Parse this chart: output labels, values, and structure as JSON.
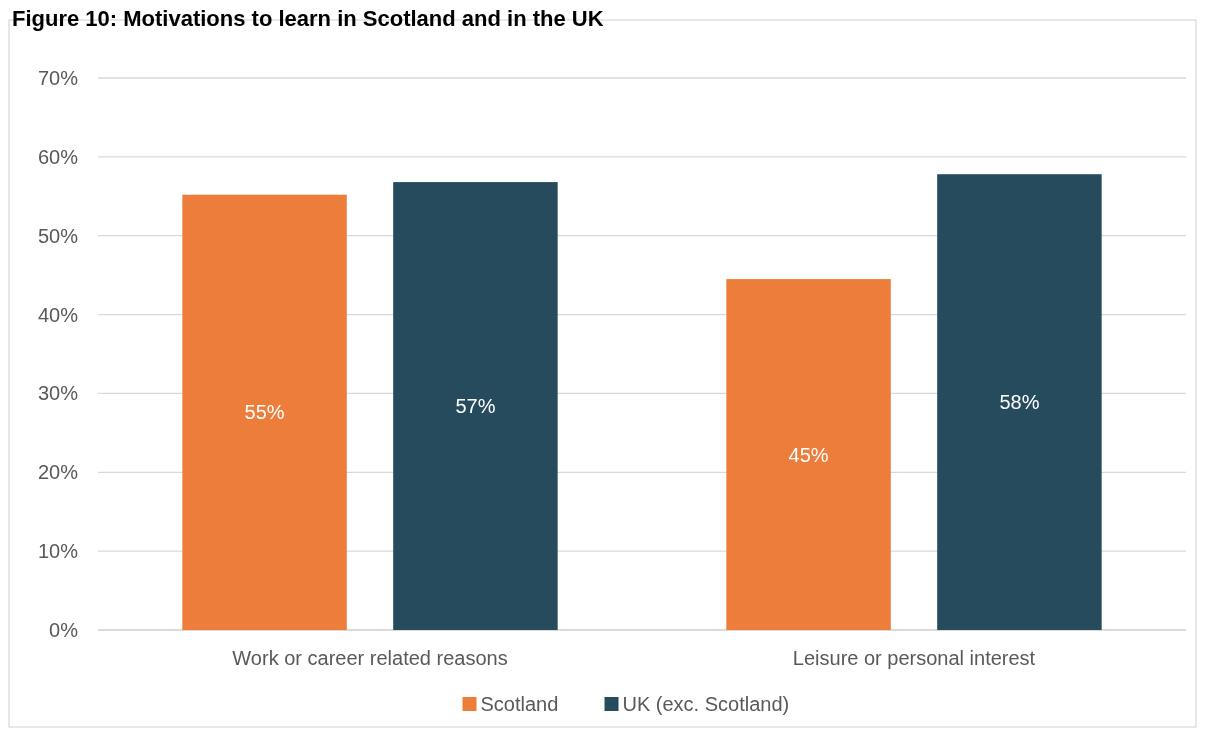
{
  "chart_data": {
    "type": "bar",
    "title": "Figure 10: Motivations to learn in Scotland and in the UK",
    "categories": [
      "Work or career related reasons",
      "Leisure or personal interest"
    ],
    "series": [
      {
        "name": "Scotland",
        "color": "#ed7d3b",
        "values": [
          55.2,
          44.5
        ],
        "value_labels": [
          "55%",
          "45%"
        ]
      },
      {
        "name": "UK (exc. Scotland)",
        "color": "#264b5c",
        "values": [
          56.8,
          57.8
        ],
        "value_labels": [
          "57%",
          "58%"
        ]
      }
    ],
    "ylim": [
      0,
      70
    ],
    "yticks": [
      {
        "value": 0,
        "label": "0%"
      },
      {
        "value": 10,
        "label": "10%"
      },
      {
        "value": 20,
        "label": "20%"
      },
      {
        "value": 30,
        "label": "30%"
      },
      {
        "value": 40,
        "label": "40%"
      },
      {
        "value": 50,
        "label": "50%"
      },
      {
        "value": 60,
        "label": "60%"
      },
      {
        "value": 70,
        "label": "70%"
      }
    ],
    "grid": "y",
    "legend": "bottom"
  }
}
